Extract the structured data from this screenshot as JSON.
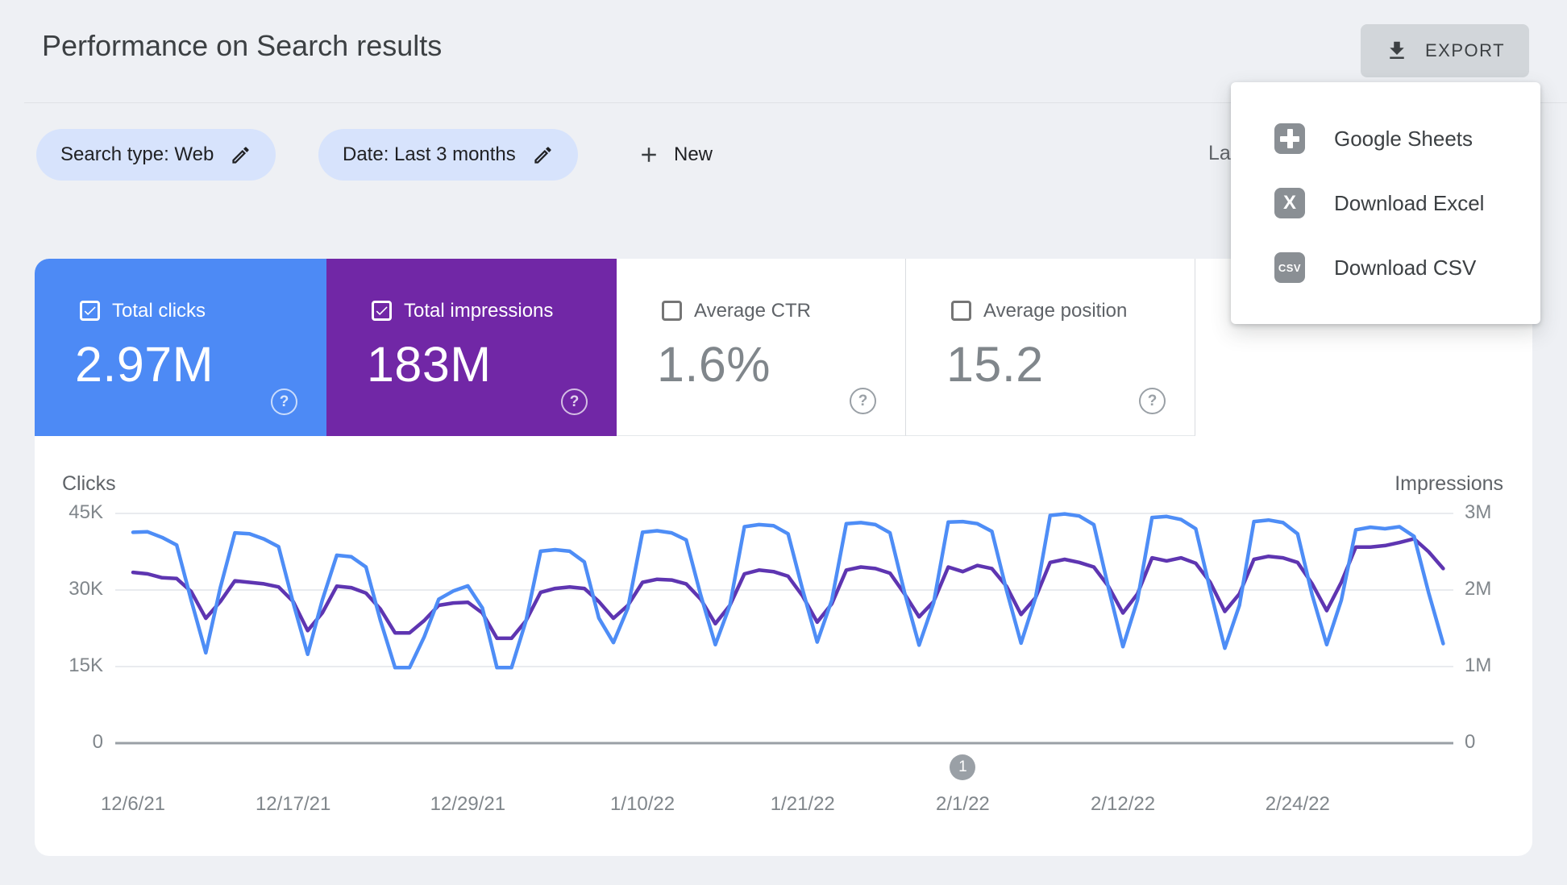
{
  "header": {
    "title": "Performance on Search results",
    "export_label": "EXPORT"
  },
  "export_menu": {
    "items": [
      {
        "icon": "google-sheets",
        "icon_text": "",
        "label": "Google Sheets"
      },
      {
        "icon": "excel",
        "icon_text": "X",
        "label": "Download Excel"
      },
      {
        "icon": "csv",
        "icon_text": "CSV",
        "label": "Download CSV"
      }
    ]
  },
  "filters": {
    "chips": [
      {
        "label": "Search type: Web"
      },
      {
        "label": "Date: Last 3 months"
      }
    ],
    "new_label": "New",
    "truncated_text": "La"
  },
  "icons": {
    "help_glyph": "?"
  },
  "metric_cards": [
    {
      "label": "Total clicks",
      "value": "2.97M",
      "checked": true,
      "bg": "#4d8af5"
    },
    {
      "label": "Total impressions",
      "value": "183M",
      "checked": true,
      "bg": "#7127a6"
    },
    {
      "label": "Average CTR",
      "value": "1.6%",
      "checked": false,
      "bg": "#ffffff"
    },
    {
      "label": "Average position",
      "value": "15.2",
      "checked": false,
      "bg": "#ffffff"
    }
  ],
  "chart_data": {
    "type": "line",
    "x_tick_labels": [
      "12/6/21",
      "12/17/21",
      "12/29/21",
      "1/10/22",
      "1/21/22",
      "2/1/22",
      "2/12/22",
      "2/24/22"
    ],
    "x_tick_day_index": [
      0,
      11,
      23,
      35,
      46,
      57,
      68,
      80
    ],
    "left_axis": {
      "label": "Clicks",
      "ticks": [
        "45K",
        "30K",
        "15K",
        "0"
      ],
      "max": 45000
    },
    "right_axis": {
      "label": "Impressions",
      "ticks": [
        "3M",
        "2M",
        "1M",
        "0"
      ],
      "max": 3000000
    },
    "grid": true,
    "annotation_marker": {
      "label": "1",
      "day_index": 57
    },
    "series": [
      {
        "name": "Clicks",
        "axis": "left",
        "color": "#4e8df6",
        "values": [
          41300,
          41400,
          40300,
          38800,
          28000,
          17700,
          30500,
          41200,
          41000,
          40000,
          38500,
          27500,
          17400,
          28000,
          36800,
          36500,
          34500,
          24000,
          14800,
          14800,
          20800,
          28200,
          29800,
          30800,
          26500,
          14800,
          14800,
          24000,
          37600,
          37900,
          37600,
          35500,
          24500,
          19700,
          26500,
          41300,
          41600,
          41200,
          39800,
          29000,
          19300,
          27000,
          42400,
          42800,
          42600,
          41000,
          30000,
          19800,
          28000,
          43000,
          43200,
          42800,
          41200,
          29500,
          19200,
          27500,
          43300,
          43400,
          43000,
          41500,
          30000,
          19600,
          28500,
          44600,
          44900,
          44500,
          42800,
          30500,
          18900,
          28000,
          44200,
          44400,
          43800,
          42000,
          30000,
          18600,
          27000,
          43400,
          43700,
          43200,
          41000,
          29000,
          19300,
          28000,
          41800,
          42300,
          42000,
          42400,
          40500,
          29500,
          19500
        ]
      },
      {
        "name": "Impressions",
        "axis": "right",
        "color": "#5e35b1",
        "values": [
          2230000,
          2210000,
          2160000,
          2150000,
          1980000,
          1630000,
          1850000,
          2120000,
          2100000,
          2080000,
          2040000,
          1850000,
          1470000,
          1700000,
          2050000,
          2030000,
          1960000,
          1750000,
          1440000,
          1440000,
          1600000,
          1800000,
          1830000,
          1840000,
          1700000,
          1370000,
          1370000,
          1600000,
          1970000,
          2020000,
          2040000,
          2020000,
          1850000,
          1630000,
          1800000,
          2100000,
          2140000,
          2130000,
          2080000,
          1880000,
          1560000,
          1800000,
          2210000,
          2260000,
          2240000,
          2180000,
          1920000,
          1580000,
          1820000,
          2260000,
          2300000,
          2280000,
          2220000,
          1950000,
          1650000,
          1850000,
          2300000,
          2240000,
          2320000,
          2280000,
          2050000,
          1680000,
          1900000,
          2360000,
          2400000,
          2360000,
          2300000,
          2050000,
          1700000,
          1950000,
          2420000,
          2380000,
          2420000,
          2350000,
          2100000,
          1720000,
          1950000,
          2400000,
          2440000,
          2420000,
          2360000,
          2080000,
          1730000,
          2100000,
          2560000,
          2560000,
          2580000,
          2620000,
          2670000,
          2500000,
          2280000
        ]
      }
    ]
  }
}
